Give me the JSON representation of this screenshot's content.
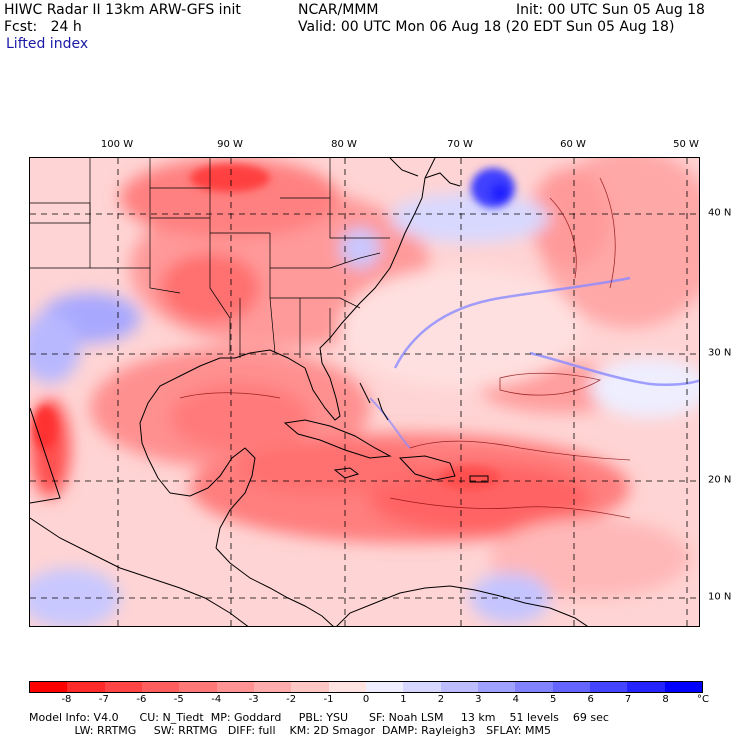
{
  "header": {
    "line1_left": "HIWC Radar II 13km ARW-GFS init",
    "center_line1": "NCAR/MMM",
    "init_label": "Init: 00 UTC Sun 05 Aug 18",
    "fcst_label": "Fcst:   24 h",
    "valid_label": "Valid: 00 UTC Mon 06 Aug 18 (20 EDT Sun 05 Aug 18)",
    "field_name": "Lifted index"
  },
  "longitude_labels": [
    "100 W",
    "90 W",
    "80 W",
    "70 W",
    "60 W",
    "50 W"
  ],
  "latitude_labels": [
    "40 N",
    "30 N",
    "20 N",
    "10 N"
  ],
  "colorbar": {
    "unit": "°C",
    "tick_labels": [
      "-8",
      "-7",
      "-6",
      "-5",
      "-4",
      "-3",
      "-2",
      "-1",
      "0",
      "1",
      "2",
      "3",
      "4",
      "5",
      "6",
      "7",
      "8"
    ],
    "colors": [
      "#ff0000",
      "#ff2a2a",
      "#ff4545",
      "#ff5e5e",
      "#ff7878",
      "#ff9292",
      "#ffacac",
      "#ffc6c6",
      "#ffe2e2",
      "#eeeeff",
      "#d6d6ff",
      "#bcbcff",
      "#a0a0ff",
      "#8282ff",
      "#6464ff",
      "#4545ff",
      "#2424ff",
      "#0000ff"
    ]
  },
  "footer": {
    "line1": "Model Info: V4.0      CU: N_Tiedt  MP: Goddard     PBL: YSU      SF: Noah LSM     13 km    51 levels    69 sec",
    "line2": "             LW: RRTMG     SW: RRTMG   DIFF: full    KM: 2D Smagor  DAMP: Rayleigh3   SFLAY: MM5"
  }
}
